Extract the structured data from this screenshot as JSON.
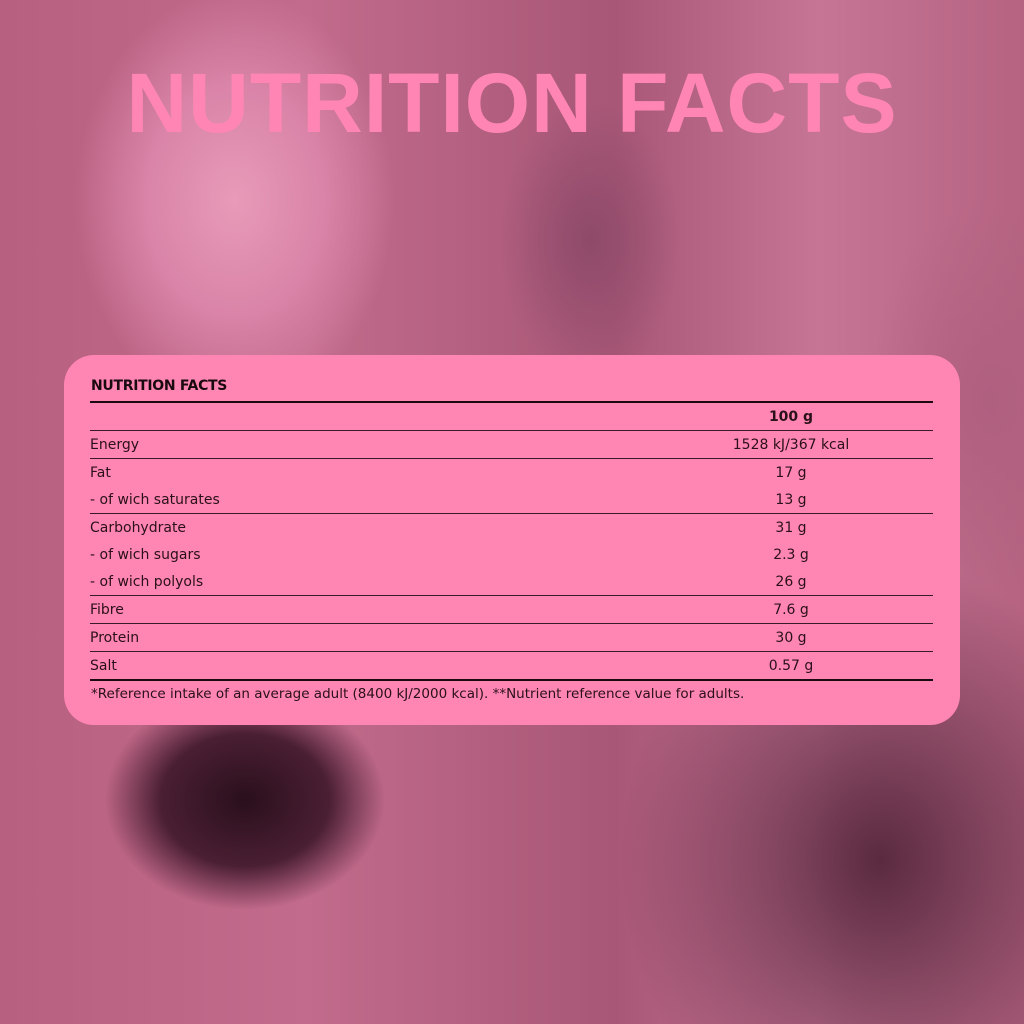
{
  "title": "NUTRITION FACTS",
  "panel": {
    "title": "NUTRITION FACTS",
    "column_header": "100 g",
    "rows": [
      {
        "label": "Energy",
        "value": "1528 kJ/367 kcal"
      },
      {
        "label": "Fat",
        "value": "17 g"
      },
      {
        "label": "- of wich saturates",
        "value": "13 g"
      },
      {
        "label": "Carbohydrate",
        "value": "31 g"
      },
      {
        "label": "- of wich sugars",
        "value": "2.3 g"
      },
      {
        "label": "- of wich polyols",
        "value": "26 g"
      },
      {
        "label": "Fibre",
        "value": "7.6 g"
      },
      {
        "label": "Protein",
        "value": "30 g"
      },
      {
        "label": "Salt",
        "value": "0.57 g"
      }
    ],
    "footnote": "*Reference intake of an average adult (8400 kJ/2000 kcal). **Nutrient reference value for adults."
  },
  "colors": {
    "accent": "#ff85b3",
    "text": "#2a1018"
  }
}
